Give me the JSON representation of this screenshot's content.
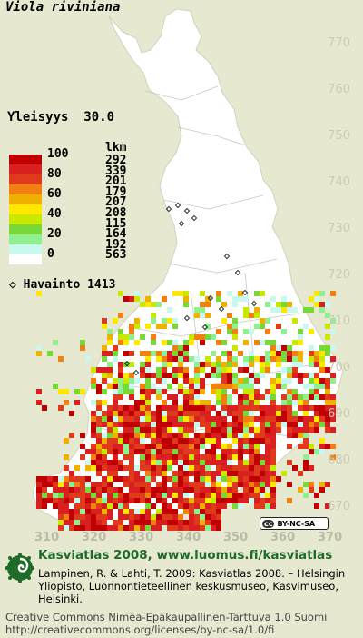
{
  "map_title": "Viola riviniana",
  "frequency_label": "Yleisyys",
  "frequency_value": "30.0",
  "legend": {
    "classes": [
      {
        "label": "100",
        "color": "#c00000"
      },
      {
        "label": "",
        "color": "#d82020"
      },
      {
        "label": "80",
        "color": "#e03a1c"
      },
      {
        "label": "",
        "color": "#f08010"
      },
      {
        "label": "60",
        "color": "#f0b000"
      },
      {
        "label": "",
        "color": "#ffe800"
      },
      {
        "label": "40",
        "color": "#c8e800"
      },
      {
        "label": "",
        "color": "#78d838"
      },
      {
        "label": "20",
        "color": "#90f090"
      },
      {
        "label": "",
        "color": "#c8f8f0"
      },
      {
        "label": "0",
        "color": "#ffffff"
      }
    ],
    "count_header": "lkm",
    "counts": [
      "292",
      "339",
      "201",
      "179",
      "207",
      "208",
      "115",
      "164",
      "192",
      "563"
    ]
  },
  "observation_label": "◇ Havainto",
  "observation_count": "1413",
  "y_ticks": [
    "770",
    "760",
    "750",
    "740",
    "730",
    "720",
    "710",
    "700",
    "690",
    "680",
    "670"
  ],
  "x_ticks": [
    "310",
    "320",
    "330",
    "340",
    "350",
    "360",
    "370"
  ],
  "cc_badge": {
    "icon": "cc",
    "text": "BY-NC-SA"
  },
  "atlas_line": "Kasviatlas 2008, www.luomus.fi/kasviatlas",
  "reference": "Lampinen, R. & Lahti, T. 2009: Kasviatlas 2008. – Helsingin Yliopisto, Luonnontieteellinen keskusmuseo, Kasvimuseo, Helsinki.",
  "license_line1": "Creative Commons Nimeä-Epäkaupallinen-Tarttuva 1.0 Suomi",
  "license_line2": "http://creativecommons.org/licenses/by-nc-sa/1.0/fi",
  "colors": {
    "background": "#e6e9cf",
    "land": "#ffffff",
    "grid_label": "#c9cbb6",
    "logo_green": "#1f6b2a"
  }
}
